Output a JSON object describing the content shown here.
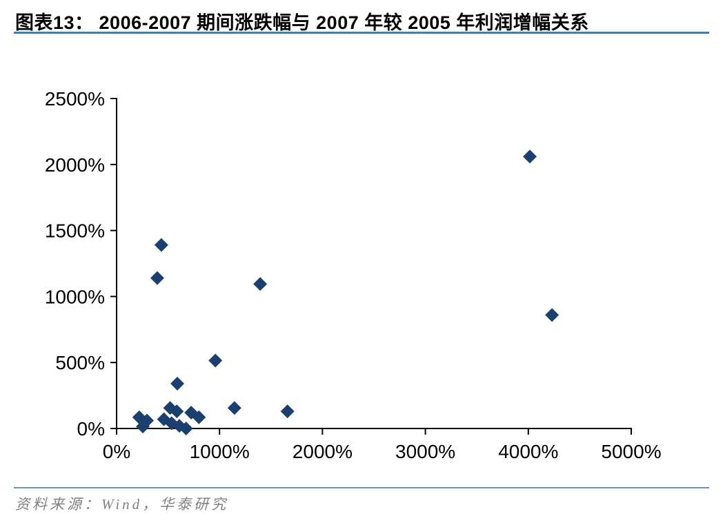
{
  "title": "图表13： 2006-2007 期间涨跌幅与 2007 年较 2005 年利润增幅关系",
  "source": "资料来源：Wind，华泰研究",
  "colors": {
    "marker": "#1B3F6E",
    "axis": "#000000",
    "title_rule": "#4B79AF",
    "footer_rule": "#6B92BE",
    "source_text": "#808080"
  },
  "chart_data": {
    "type": "scatter",
    "marker": "diamond",
    "title": "2006-2007 期间涨跌幅与 2007 年较 2005 年利润增幅关系",
    "xlabel": "",
    "ylabel": "",
    "xlim": [
      0,
      5000
    ],
    "ylim": [
      0,
      2500
    ],
    "grid": false,
    "legend": "none",
    "x_ticks": [
      "0%",
      "1000%",
      "2000%",
      "3000%",
      "4000%",
      "5000%"
    ],
    "x_tick_values": [
      0,
      1000,
      2000,
      3000,
      4000,
      5000
    ],
    "y_ticks": [
      "0%",
      "500%",
      "1000%",
      "1500%",
      "2000%",
      "2500%"
    ],
    "y_tick_values": [
      0,
      500,
      1000,
      1500,
      2000,
      2500
    ],
    "points": [
      {
        "x": 4015,
        "y": 2060
      },
      {
        "x": 4230,
        "y": 860
      },
      {
        "x": 435,
        "y": 1390
      },
      {
        "x": 395,
        "y": 1140
      },
      {
        "x": 1395,
        "y": 1095
      },
      {
        "x": 960,
        "y": 515
      },
      {
        "x": 590,
        "y": 340
      },
      {
        "x": 1145,
        "y": 155
      },
      {
        "x": 1660,
        "y": 130
      },
      {
        "x": 220,
        "y": 85
      },
      {
        "x": 295,
        "y": 60
      },
      {
        "x": 255,
        "y": 15
      },
      {
        "x": 460,
        "y": 70
      },
      {
        "x": 520,
        "y": 155
      },
      {
        "x": 585,
        "y": 130
      },
      {
        "x": 535,
        "y": 40
      },
      {
        "x": 610,
        "y": 20
      },
      {
        "x": 675,
        "y": 0
      },
      {
        "x": 725,
        "y": 120
      },
      {
        "x": 800,
        "y": 85
      }
    ]
  }
}
